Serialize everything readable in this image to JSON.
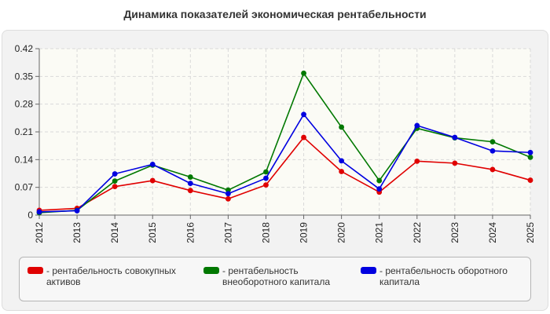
{
  "chart_data": {
    "type": "line",
    "title": "Динамика показателей экономическая рентабельности",
    "xlabel": "",
    "ylabel": "",
    "x": [
      "2012",
      "2013",
      "2014",
      "2015",
      "2016",
      "2017",
      "2018",
      "2019",
      "2020",
      "2021",
      "2022",
      "2023",
      "2024",
      "2025"
    ],
    "ylim": [
      0,
      0.42
    ],
    "yticks": [
      "0",
      "0.07",
      "0.14",
      "0.21",
      "0.28",
      "0.35",
      "0.42"
    ],
    "grid": true,
    "legend_position": "bottom",
    "series": [
      {
        "name": "- рентабельность совокупных активов",
        "color": "#e00000",
        "values": [
          0.012,
          0.017,
          0.072,
          0.087,
          0.062,
          0.041,
          0.076,
          0.196,
          0.11,
          0.058,
          0.136,
          0.131,
          0.115,
          0.088
        ]
      },
      {
        "name": "- рентабельность внеоборотного капитала",
        "color": "#007800",
        "values": [
          0.006,
          0.012,
          0.086,
          0.126,
          0.096,
          0.063,
          0.109,
          0.358,
          0.222,
          0.087,
          0.219,
          0.195,
          0.185,
          0.146
        ]
      },
      {
        "name": "- рентабельность оборотного капитала",
        "color": "#0000e0",
        "values": [
          0.008,
          0.011,
          0.104,
          0.128,
          0.08,
          0.054,
          0.093,
          0.254,
          0.137,
          0.066,
          0.226,
          0.196,
          0.162,
          0.158
        ]
      }
    ]
  }
}
